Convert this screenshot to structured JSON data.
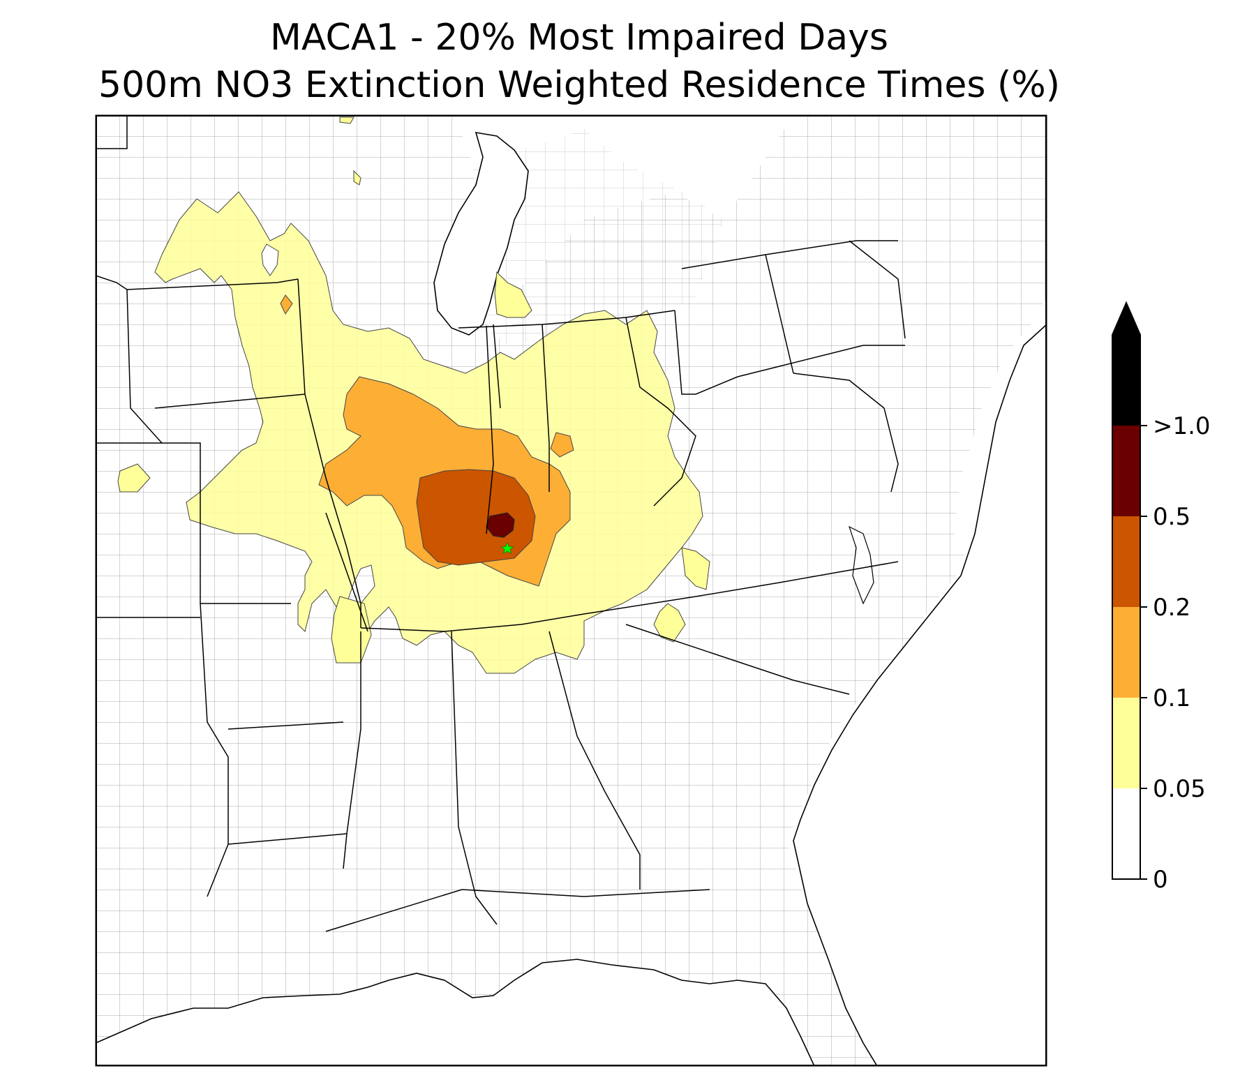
{
  "title": {
    "line1": "MACA1 - 20% Most Impaired Days",
    "line2": "500m NO3 Extinction Weighted Residence Times (%)"
  },
  "legend": {
    "levels": [
      {
        "from": "0",
        "to": "0.05",
        "color": "#ffffff"
      },
      {
        "from": "0.05",
        "to": "0.1",
        "color": "#ffff99"
      },
      {
        "from": "0.1",
        "to": "0.2",
        "color": "#fdae35"
      },
      {
        "from": "0.2",
        "to": "0.5",
        "color": "#cc5500"
      },
      {
        "from": "0.5",
        "to": ">1.0",
        "color": "#6b0000"
      }
    ],
    "extend_color": "#000000",
    "tick_labels": [
      "0",
      "0.05",
      "0.1",
      "0.2",
      "0.5",
      ">1.0"
    ]
  },
  "map": {
    "region": "Eastern United States",
    "receptor_site": "MACA1",
    "receptor_marker": "green-star",
    "receptor_color": "#00ff00",
    "boundaries": [
      "state",
      "county"
    ],
    "county_line_color": "#a0a0a0",
    "state_line_color": "#000000"
  }
}
